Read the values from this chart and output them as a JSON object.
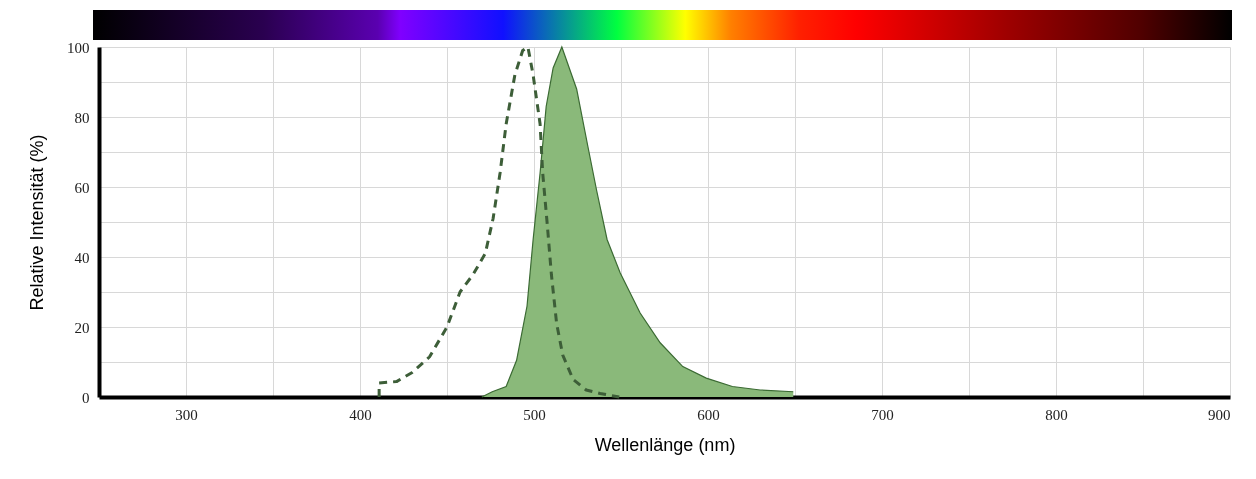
{
  "chart_data": {
    "type": "area",
    "xlabel": "Wellenlänge (nm)",
    "ylabel": "Relative Intensität (%)",
    "xlim": [
      250,
      900
    ],
    "xticks": [
      300,
      {
        "value": 350,
        "label": null
      },
      400,
      {
        "value": 450,
        "label": null
      },
      500,
      {
        "value": 550,
        "label": null
      },
      600,
      {
        "value": 650,
        "label": null
      },
      700,
      {
        "value": 750,
        "label": null
      },
      800,
      {
        "value": 850,
        "label": null
      },
      900
    ],
    "ylim": [
      0,
      100
    ],
    "yticks": [
      0,
      {
        "value": 10,
        "label": null
      },
      20,
      {
        "value": 30,
        "label": null
      },
      40,
      {
        "value": 50,
        "label": null
      },
      60,
      {
        "value": 70,
        "label": null
      },
      80,
      {
        "value": 90,
        "label": null
      },
      100
    ],
    "grid": true,
    "series": [
      {
        "type": "line",
        "line_style": "dashed",
        "color": "#3d5e38",
        "x": [
          411,
          411,
          421,
          430,
          440,
          450,
          457.5,
          465,
          472,
          476.5,
          480.5,
          484,
          489,
          493.5,
          496.5,
          499.5,
          503.5,
          505,
          507.5,
          510,
          513,
          516.5,
          522.5,
          530,
          538,
          549
        ],
        "values": [
          0,
          4,
          4.4,
          7,
          11.5,
          20,
          30,
          35,
          41,
          51,
          64,
          78,
          92,
          99,
          100,
          92,
          78,
          64,
          50,
          35,
          21,
          12,
          5,
          2,
          1,
          0
        ]
      },
      {
        "color": "#8ab97a",
        "x": [
          470,
          476,
          484,
          490,
          496,
          499.5,
          503.5,
          507,
          511,
          516,
          524.5,
          531,
          536,
          542,
          549.5,
          561,
          572.5,
          585.5,
          599,
          614,
          630,
          649,
          649
        ],
        "values": [
          0,
          1.5,
          3,
          10.5,
          26,
          45,
          64,
          83,
          94,
          100,
          88,
          71.5,
          59,
          45,
          35.5,
          24,
          15.5,
          8.7,
          5.4,
          3,
          2,
          1.5,
          0
        ]
      }
    ]
  }
}
